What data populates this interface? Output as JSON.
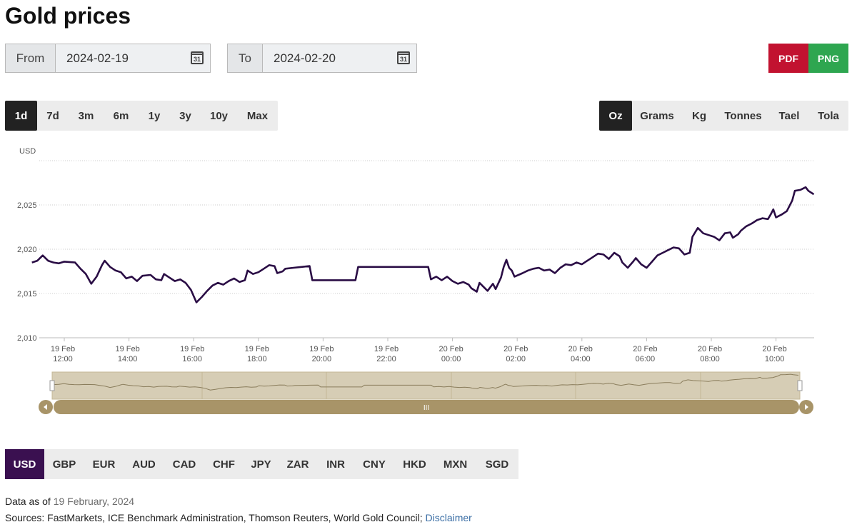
{
  "page": {
    "title": "Gold prices"
  },
  "date_range": {
    "from_label": "From",
    "from_value": "2024-02-19",
    "to_label": "To",
    "to_value": "2024-02-20",
    "calendar_icon_text": "31"
  },
  "export": {
    "pdf_label": "PDF",
    "png_label": "PNG",
    "pdf_color": "#c21230",
    "png_color": "#2ea650"
  },
  "periods": {
    "items": [
      "1d",
      "7d",
      "3m",
      "6m",
      "1y",
      "3y",
      "10y",
      "Max"
    ],
    "selected": "1d"
  },
  "units": {
    "items": [
      "Oz",
      "Grams",
      "Kg",
      "Tonnes",
      "Tael",
      "Tola"
    ],
    "selected": "Oz"
  },
  "currencies": {
    "items": [
      "USD",
      "GBP",
      "EUR",
      "AUD",
      "CAD",
      "CHF",
      "JPY",
      "ZAR",
      "INR",
      "CNY",
      "HKD",
      "MXN",
      "SGD"
    ],
    "selected": "USD",
    "accent": "#3a1050"
  },
  "chart_data": {
    "type": "line",
    "ylabel": "USD",
    "y_ticks": [
      "2,010",
      "2,015",
      "2,020",
      "2,025"
    ],
    "ylim": [
      2010,
      2030
    ],
    "grid": true,
    "line_color": "#2a0d45",
    "x_ticks": [
      {
        "d": "19 Feb",
        "t": "12:00"
      },
      {
        "d": "19 Feb",
        "t": "14:00"
      },
      {
        "d": "19 Feb",
        "t": "16:00"
      },
      {
        "d": "19 Feb",
        "t": "18:00"
      },
      {
        "d": "19 Feb",
        "t": "20:00"
      },
      {
        "d": "19 Feb",
        "t": "22:00"
      },
      {
        "d": "20 Feb",
        "t": "00:00"
      },
      {
        "d": "20 Feb",
        "t": "02:00"
      },
      {
        "d": "20 Feb",
        "t": "04:00"
      },
      {
        "d": "20 Feb",
        "t": "06:00"
      },
      {
        "d": "20 Feb",
        "t": "08:00"
      },
      {
        "d": "20 Feb",
        "t": "10:00"
      }
    ],
    "series": [
      {
        "points": [
          [
            "2024-02-19 11:00",
            2018.5
          ],
          [
            "2024-02-19 11:10",
            2018.7
          ],
          [
            "2024-02-19 11:20",
            2019.3
          ],
          [
            "2024-02-19 11:30",
            2018.7
          ],
          [
            "2024-02-19 11:40",
            2018.5
          ],
          [
            "2024-02-19 11:50",
            2018.4
          ],
          [
            "2024-02-19 12:00",
            2018.6
          ],
          [
            "2024-02-19 12:20",
            2018.5
          ],
          [
            "2024-02-19 12:30",
            2017.8
          ],
          [
            "2024-02-19 12:40",
            2017.2
          ],
          [
            "2024-02-19 12:50",
            2016.1
          ],
          [
            "2024-02-19 13:00",
            2016.9
          ],
          [
            "2024-02-19 13:10",
            2018.2
          ],
          [
            "2024-02-19 13:15",
            2018.7
          ],
          [
            "2024-02-19 13:25",
            2018.0
          ],
          [
            "2024-02-19 13:35",
            2017.6
          ],
          [
            "2024-02-19 13:45",
            2017.4
          ],
          [
            "2024-02-19 13:55",
            2016.7
          ],
          [
            "2024-02-19 14:05",
            2016.9
          ],
          [
            "2024-02-19 14:15",
            2016.4
          ],
          [
            "2024-02-19 14:25",
            2017.0
          ],
          [
            "2024-02-19 14:40",
            2017.1
          ],
          [
            "2024-02-19 14:50",
            2016.6
          ],
          [
            "2024-02-19 15:00",
            2016.5
          ],
          [
            "2024-02-19 15:05",
            2017.2
          ],
          [
            "2024-02-19 15:15",
            2016.8
          ],
          [
            "2024-02-19 15:25",
            2016.4
          ],
          [
            "2024-02-19 15:35",
            2016.6
          ],
          [
            "2024-02-19 15:45",
            2016.2
          ],
          [
            "2024-02-19 15:55",
            2015.4
          ],
          [
            "2024-02-19 16:05",
            2014.0
          ],
          [
            "2024-02-19 16:15",
            2014.6
          ],
          [
            "2024-02-19 16:25",
            2015.3
          ],
          [
            "2024-02-19 16:35",
            2015.9
          ],
          [
            "2024-02-19 16:45",
            2016.2
          ],
          [
            "2024-02-19 16:55",
            2016.0
          ],
          [
            "2024-02-19 17:05",
            2016.4
          ],
          [
            "2024-02-19 17:15",
            2016.7
          ],
          [
            "2024-02-19 17:25",
            2016.3
          ],
          [
            "2024-02-19 17:35",
            2016.5
          ],
          [
            "2024-02-19 17:40",
            2017.6
          ],
          [
            "2024-02-19 17:50",
            2017.2
          ],
          [
            "2024-02-19 18:00",
            2017.4
          ],
          [
            "2024-02-19 18:10",
            2017.8
          ],
          [
            "2024-02-19 18:20",
            2018.2
          ],
          [
            "2024-02-19 18:30",
            2018.1
          ],
          [
            "2024-02-19 18:35",
            2017.3
          ],
          [
            "2024-02-19 18:45",
            2017.5
          ],
          [
            "2024-02-19 18:50",
            2017.8
          ],
          [
            "2024-02-19 19:05",
            2017.9
          ],
          [
            "2024-02-19 19:20",
            2018.0
          ],
          [
            "2024-02-19 19:35",
            2018.1
          ],
          [
            "2024-02-19 19:40",
            2016.5
          ],
          [
            "2024-02-19 21:00",
            2016.5
          ],
          [
            "2024-02-19 21:05",
            2018.0
          ],
          [
            "2024-02-19 22:00",
            2018.0
          ],
          [
            "2024-02-19 23:00",
            2018.0
          ],
          [
            "2024-02-19 23:15",
            2018.0
          ],
          [
            "2024-02-19 23:20",
            2016.6
          ],
          [
            "2024-02-19 23:30",
            2016.9
          ],
          [
            "2024-02-19 23:40",
            2016.5
          ],
          [
            "2024-02-19 23:50",
            2016.9
          ],
          [
            "2024-02-20 00:00",
            2016.4
          ],
          [
            "2024-02-20 00:10",
            2016.1
          ],
          [
            "2024-02-20 00:20",
            2016.3
          ],
          [
            "2024-02-20 00:30",
            2016.0
          ],
          [
            "2024-02-20 00:35",
            2015.6
          ],
          [
            "2024-02-20 00:45",
            2015.2
          ],
          [
            "2024-02-20 00:50",
            2016.2
          ],
          [
            "2024-02-20 01:00",
            2015.6
          ],
          [
            "2024-02-20 01:05",
            2015.3
          ],
          [
            "2024-02-20 01:15",
            2016.1
          ],
          [
            "2024-02-20 01:20",
            2015.5
          ],
          [
            "2024-02-20 01:30",
            2016.8
          ],
          [
            "2024-02-20 01:35",
            2018.0
          ],
          [
            "2024-02-20 01:40",
            2018.8
          ],
          [
            "2024-02-20 01:45",
            2017.9
          ],
          [
            "2024-02-20 01:50",
            2017.6
          ],
          [
            "2024-02-20 01:55",
            2016.9
          ],
          [
            "2024-02-20 02:10",
            2017.3
          ],
          [
            "2024-02-20 02:20",
            2017.6
          ],
          [
            "2024-02-20 02:30",
            2017.8
          ],
          [
            "2024-02-20 02:40",
            2017.9
          ],
          [
            "2024-02-20 02:50",
            2017.6
          ],
          [
            "2024-02-20 03:00",
            2017.7
          ],
          [
            "2024-02-20 03:10",
            2017.3
          ],
          [
            "2024-02-20 03:20",
            2017.9
          ],
          [
            "2024-02-20 03:30",
            2018.3
          ],
          [
            "2024-02-20 03:40",
            2018.2
          ],
          [
            "2024-02-20 03:50",
            2018.5
          ],
          [
            "2024-02-20 04:00",
            2018.3
          ],
          [
            "2024-02-20 04:10",
            2018.7
          ],
          [
            "2024-02-20 04:20",
            2019.1
          ],
          [
            "2024-02-20 04:30",
            2019.5
          ],
          [
            "2024-02-20 04:40",
            2019.4
          ],
          [
            "2024-02-20 04:50",
            2018.9
          ],
          [
            "2024-02-20 05:00",
            2019.6
          ],
          [
            "2024-02-20 05:10",
            2019.2
          ],
          [
            "2024-02-20 05:15",
            2018.5
          ],
          [
            "2024-02-20 05:25",
            2017.9
          ],
          [
            "2024-02-20 05:35",
            2018.6
          ],
          [
            "2024-02-20 05:40",
            2019.0
          ],
          [
            "2024-02-20 05:50",
            2018.3
          ],
          [
            "2024-02-20 06:00",
            2017.9
          ],
          [
            "2024-02-20 06:10",
            2018.6
          ],
          [
            "2024-02-20 06:20",
            2019.3
          ],
          [
            "2024-02-20 06:30",
            2019.6
          ],
          [
            "2024-02-20 06:40",
            2019.9
          ],
          [
            "2024-02-20 06:50",
            2020.2
          ],
          [
            "2024-02-20 07:00",
            2020.1
          ],
          [
            "2024-02-20 07:10",
            2019.4
          ],
          [
            "2024-02-20 07:20",
            2019.6
          ],
          [
            "2024-02-20 07:25",
            2021.4
          ],
          [
            "2024-02-20 07:35",
            2022.4
          ],
          [
            "2024-02-20 07:45",
            2021.8
          ],
          [
            "2024-02-20 07:55",
            2021.6
          ],
          [
            "2024-02-20 08:05",
            2021.4
          ],
          [
            "2024-02-20 08:15",
            2021.0
          ],
          [
            "2024-02-20 08:25",
            2021.8
          ],
          [
            "2024-02-20 08:35",
            2021.9
          ],
          [
            "2024-02-20 08:40",
            2021.3
          ],
          [
            "2024-02-20 08:50",
            2021.7
          ],
          [
            "2024-02-20 08:55",
            2022.1
          ],
          [
            "2024-02-20 09:05",
            2022.6
          ],
          [
            "2024-02-20 09:15",
            2022.9
          ],
          [
            "2024-02-20 09:25",
            2023.3
          ],
          [
            "2024-02-20 09:35",
            2023.5
          ],
          [
            "2024-02-20 09:45",
            2023.4
          ],
          [
            "2024-02-20 09:50",
            2023.9
          ],
          [
            "2024-02-20 09:55",
            2024.5
          ],
          [
            "2024-02-20 10:00",
            2023.6
          ],
          [
            "2024-02-20 10:10",
            2023.9
          ],
          [
            "2024-02-20 10:20",
            2024.3
          ],
          [
            "2024-02-20 10:30",
            2025.5
          ],
          [
            "2024-02-20 10:35",
            2026.6
          ],
          [
            "2024-02-20 10:45",
            2026.7
          ],
          [
            "2024-02-20 10:55",
            2027.0
          ],
          [
            "2024-02-20 11:00",
            2026.6
          ],
          [
            "2024-02-20 11:10",
            2026.2
          ]
        ]
      }
    ]
  },
  "navigator": {
    "handle_text": "III",
    "track_color": "#d6cdb5",
    "bar_color": "#a89468"
  },
  "footer": {
    "data_as_of_label": "Data as of",
    "data_as_of_value": "19 February, 2024",
    "sources_text": "Sources: FastMarkets, ICE Benchmark Administration, Thomson Reuters, World Gold Council;",
    "disclaimer_label": "Disclaimer"
  }
}
